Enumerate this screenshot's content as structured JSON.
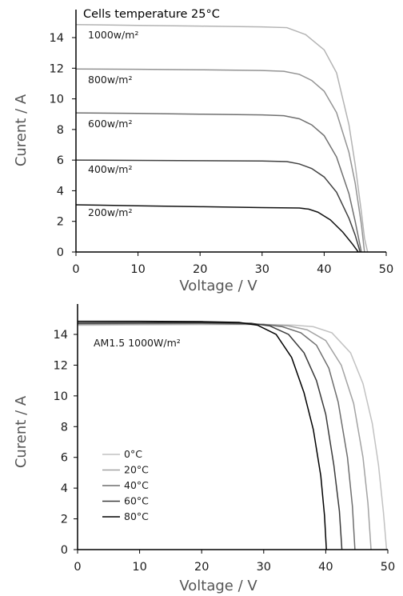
{
  "chart_data": [
    {
      "type": "line",
      "title": "Cells temperature 25°C",
      "xlabel": "Voltage / V",
      "ylabel": "Curent / A",
      "xlim": [
        0,
        50
      ],
      "ylim": [
        0,
        15
      ],
      "xticks": [
        0,
        10,
        20,
        30,
        40,
        50
      ],
      "yticks": [
        0,
        2,
        4,
        6,
        8,
        10,
        12,
        14
      ],
      "grid": false,
      "series": [
        {
          "name": "1000w/m²",
          "color": "#b3b3b3",
          "x": [
            0,
            10,
            20,
            30,
            34,
            37,
            40,
            42,
            44,
            45,
            46,
            46.5,
            47.0
          ],
          "y": [
            14.85,
            14.8,
            14.75,
            14.7,
            14.65,
            14.2,
            13.2,
            11.7,
            8.3,
            5.7,
            2.6,
            0.9,
            0
          ]
        },
        {
          "name": "800w/m²",
          "color": "#939393",
          "x": [
            0,
            10,
            20,
            30,
            33.5,
            36,
            38,
            40,
            42,
            44,
            45,
            46,
            46.5
          ],
          "y": [
            11.95,
            11.93,
            11.9,
            11.85,
            11.8,
            11.6,
            11.2,
            10.5,
            9.1,
            6.5,
            4.5,
            1.8,
            0
          ]
        },
        {
          "name": "600w/m²",
          "color": "#707070",
          "x": [
            0,
            10,
            20,
            30,
            33.5,
            36,
            38,
            40,
            42,
            44,
            45,
            46
          ],
          "y": [
            9.08,
            9.05,
            9.0,
            8.95,
            8.9,
            8.7,
            8.3,
            7.6,
            6.2,
            3.8,
            2.0,
            0
          ]
        },
        {
          "name": "400w/m²",
          "color": "#404040",
          "x": [
            0,
            10,
            20,
            30,
            34,
            36,
            38,
            40,
            42,
            44,
            45,
            45.8
          ],
          "y": [
            6.0,
            5.98,
            5.96,
            5.94,
            5.9,
            5.75,
            5.45,
            4.9,
            3.9,
            2.2,
            1.1,
            0
          ]
        },
        {
          "name": "200w/m²",
          "color": "#111111",
          "x": [
            0,
            10,
            20,
            30,
            36,
            37.5,
            39,
            41,
            43,
            44.5,
            45.5
          ],
          "y": [
            3.08,
            3.02,
            2.96,
            2.9,
            2.87,
            2.8,
            2.6,
            2.1,
            1.3,
            0.55,
            0
          ]
        }
      ]
    },
    {
      "type": "line",
      "title": "",
      "annotation": "AM1.5 1000W/m²",
      "xlabel": "Voltage / V",
      "ylabel": "Curent / A",
      "xlim": [
        0,
        50
      ],
      "ylim": [
        0,
        15
      ],
      "xticks": [
        0,
        10,
        20,
        30,
        40,
        50
      ],
      "yticks": [
        0,
        2,
        4,
        6,
        8,
        10,
        12,
        14
      ],
      "grid": false,
      "legend": "left",
      "series": [
        {
          "name": "0°C",
          "color": "#c2c2c2",
          "x": [
            0,
            10,
            20,
            30,
            35,
            38,
            41,
            44,
            46,
            47.5,
            48.5,
            49.3,
            49.8
          ],
          "y": [
            14.6,
            14.62,
            14.64,
            14.65,
            14.6,
            14.5,
            14.1,
            12.8,
            10.8,
            8.2,
            5.5,
            2.4,
            0
          ]
        },
        {
          "name": "20°C",
          "color": "#a3a3a3",
          "x": [
            0,
            10,
            20,
            30,
            34,
            37,
            40,
            42.5,
            44.5,
            46,
            46.8,
            47.3
          ],
          "y": [
            14.65,
            14.67,
            14.69,
            14.65,
            14.55,
            14.3,
            13.6,
            12.0,
            9.5,
            6.0,
            3.0,
            0
          ]
        },
        {
          "name": "40°C",
          "color": "#6e6e6e",
          "x": [
            0,
            10,
            20,
            30,
            33,
            36,
            38.5,
            40.5,
            42,
            43.5,
            44.3,
            44.7
          ],
          "y": [
            14.7,
            14.72,
            14.72,
            14.65,
            14.5,
            14.1,
            13.3,
            11.8,
            9.6,
            6.0,
            2.8,
            0
          ]
        },
        {
          "name": "60°C",
          "color": "#3a3a3a",
          "x": [
            0,
            10,
            20,
            28,
            31,
            34,
            36.5,
            38.5,
            40,
            41.3,
            42.2,
            42.6
          ],
          "y": [
            14.75,
            14.76,
            14.77,
            14.72,
            14.55,
            14.0,
            12.8,
            11.0,
            8.8,
            5.5,
            2.5,
            0
          ]
        },
        {
          "name": "80°C",
          "color": "#000000",
          "x": [
            0,
            10,
            20,
            26,
            29,
            32,
            34.5,
            36.5,
            38,
            39.2,
            39.8,
            40.1
          ],
          "y": [
            14.85,
            14.85,
            14.83,
            14.78,
            14.6,
            14.0,
            12.5,
            10.2,
            7.8,
            4.8,
            2.2,
            0
          ]
        }
      ]
    }
  ]
}
